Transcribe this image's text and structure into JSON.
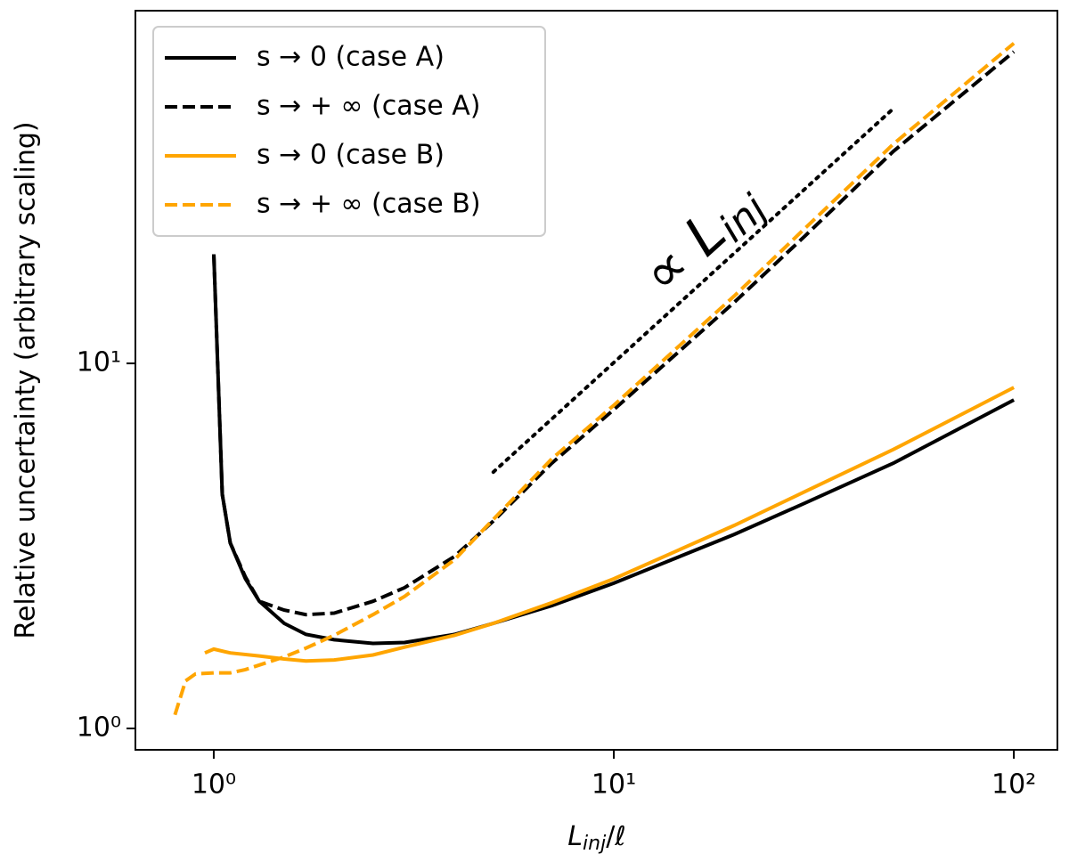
{
  "chart_data": {
    "type": "line",
    "xlabel": {
      "main": "L",
      "sub": "inj",
      "rest": "/ℓ"
    },
    "ylabel": "Relative uncertainty (arbitrary scaling)",
    "xlog": true,
    "ylog": true,
    "xlim": [
      0.637,
      128.5
    ],
    "ylim": [
      0.874,
      92.5
    ],
    "xticks": [
      {
        "value": 1,
        "label": "10⁰"
      },
      {
        "value": 10,
        "label": "10¹"
      },
      {
        "value": 100,
        "label": "10²"
      }
    ],
    "yticks": [
      {
        "value": 1,
        "label": "10⁰"
      },
      {
        "value": 10,
        "label": "10¹"
      }
    ],
    "legend": "upper left",
    "series": [
      {
        "name": "s → 0 (case A)",
        "color": "#000000",
        "linestyle": "solid",
        "x": [
          1,
          1.05,
          1.1,
          1.2,
          1.3,
          1.5,
          1.7,
          2,
          2.5,
          3,
          4,
          5,
          7,
          10,
          20,
          30,
          50,
          100
        ],
        "values": [
          19.9,
          4.38,
          3.22,
          2.57,
          2.23,
          1.94,
          1.81,
          1.75,
          1.71,
          1.72,
          1.81,
          1.94,
          2.17,
          2.5,
          3.4,
          4.14,
          5.33,
          7.94
        ]
      },
      {
        "name": "s → + ∞ (case A)",
        "color": "#000000",
        "linestyle": "dashed",
        "x": [
          1,
          1.05,
          1.1,
          1.2,
          1.3,
          1.5,
          1.7,
          2,
          2.5,
          3,
          4,
          5,
          7,
          10,
          20,
          30,
          50,
          100
        ],
        "values": [
          19.9,
          4.38,
          3.22,
          2.6,
          2.23,
          2.11,
          2.05,
          2.07,
          2.23,
          2.43,
          2.96,
          3.7,
          5.33,
          7.47,
          14.7,
          22.3,
          38.1,
          71.4
        ]
      },
      {
        "name": "s → 0 (case B)",
        "color": "#ffa500",
        "linestyle": "solid",
        "x": [
          0.95,
          1,
          1.1,
          1.3,
          1.5,
          1.7,
          2,
          2.5,
          3,
          4,
          5,
          7,
          10,
          20,
          30,
          50,
          100
        ],
        "values": [
          1.61,
          1.65,
          1.61,
          1.58,
          1.55,
          1.53,
          1.54,
          1.59,
          1.67,
          1.8,
          1.94,
          2.21,
          2.57,
          3.6,
          4.45,
          5.81,
          8.59
        ]
      },
      {
        "name": "s → + ∞ (case B)",
        "color": "#ffa500",
        "linestyle": "dashed",
        "x": [
          0.8,
          0.85,
          0.9,
          1,
          1.1,
          1.2,
          1.5,
          1.7,
          2,
          2.5,
          3,
          4,
          5,
          7,
          10,
          20,
          30,
          50,
          100
        ],
        "values": [
          1.09,
          1.35,
          1.41,
          1.42,
          1.42,
          1.45,
          1.57,
          1.66,
          1.8,
          2.05,
          2.3,
          2.9,
          3.74,
          5.48,
          7.68,
          15.3,
          23.4,
          39.9,
          75.3
        ]
      }
    ],
    "reference_line": {
      "color": "#000000",
      "linestyle": "dotted",
      "x": [
        5,
        50
      ],
      "values": [
        5.04,
        49.9
      ]
    },
    "annotation": {
      "symbol": "∝ L",
      "sub": "inj"
    }
  }
}
